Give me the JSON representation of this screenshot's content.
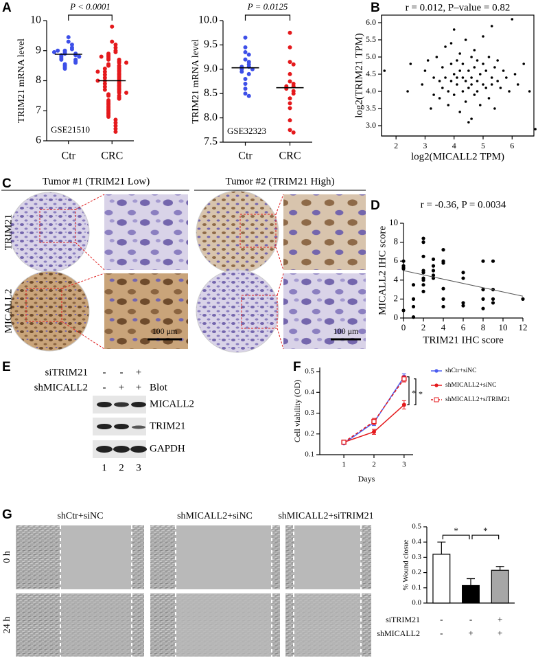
{
  "panels": [
    "A",
    "B",
    "C",
    "D",
    "E",
    "F",
    "G"
  ],
  "chart_data": [
    {
      "type": "dot",
      "pvalue": "P < 0.0001",
      "dataset": "GSE21510",
      "ylabel": "TRIM21 mRNA level",
      "categories": [
        "Ctr",
        "CRC"
      ],
      "ylim": [
        6,
        10
      ],
      "yticks": [
        6,
        7,
        8,
        9,
        10
      ],
      "groups": [
        {
          "color": "#3d4fe8",
          "mean": 8.88,
          "values": [
            9.3,
            9.45,
            9.2,
            9.1,
            9.05,
            9.0,
            8.95,
            8.9,
            8.9,
            8.85,
            8.85,
            8.8,
            8.8,
            8.75,
            8.7,
            8.7,
            8.65,
            8.6,
            8.55,
            8.5,
            8.45,
            8.4,
            9.0,
            8.95
          ]
        },
        {
          "color": "#e4191c",
          "mean": 8.0,
          "values": [
            9.8,
            9.3,
            9.2,
            9.1,
            9.0,
            8.95,
            8.9,
            8.85,
            8.8,
            8.75,
            8.7,
            8.7,
            8.65,
            8.6,
            8.55,
            8.5,
            8.5,
            8.45,
            8.4,
            8.4,
            8.35,
            8.3,
            8.3,
            8.25,
            8.2,
            8.2,
            8.15,
            8.1,
            8.1,
            8.05,
            8.0,
            8.0,
            7.95,
            7.9,
            7.9,
            7.85,
            7.8,
            7.8,
            7.75,
            7.7,
            7.7,
            7.65,
            7.6,
            7.55,
            7.5,
            7.5,
            7.45,
            7.4,
            7.35,
            7.3,
            7.25,
            7.2,
            7.15,
            7.1,
            7.05,
            7.0,
            6.95,
            6.9,
            6.85,
            6.8,
            6.7,
            6.6,
            6.5,
            6.4,
            6.3,
            8.6,
            8.0,
            7.6,
            8.3,
            8.8
          ]
        }
      ]
    },
    {
      "type": "dot",
      "pvalue": "P = 0.0125",
      "dataset": "GSE32323",
      "ylabel": "TRIM21 mRNA level",
      "categories": [
        "Ctr",
        "CRC"
      ],
      "ylim": [
        7.5,
        10
      ],
      "yticks": [
        7.5,
        {
          "value": 8,
          "label": "8.0"
        },
        8.5,
        {
          "value": 9,
          "label": "9.0"
        },
        9.5,
        {
          "value": 10,
          "label": "10.0"
        }
      ],
      "groups": [
        {
          "color": "#3d4fe8",
          "mean": 9.03,
          "values": [
            9.65,
            9.45,
            9.35,
            9.3,
            9.2,
            9.15,
            9.1,
            9.05,
            9.05,
            9.0,
            9.0,
            8.95,
            8.9,
            8.8,
            8.7,
            8.6,
            8.5,
            8.45
          ]
        },
        {
          "color": "#e4191c",
          "mean": 8.62,
          "values": [
            9.75,
            9.45,
            9.15,
            9.1,
            8.9,
            8.75,
            8.7,
            8.65,
            8.65,
            8.6,
            8.55,
            8.5,
            8.4,
            8.3,
            8.2,
            7.95,
            7.75,
            7.7
          ]
        }
      ]
    },
    {
      "type": "scatter",
      "title": "r = 0.012, P–value = 0.82",
      "xlabel": "log2(MICALL2 TPM)",
      "ylabel": "log2(TRIM21 TPM)",
      "box": true,
      "color": "#000000",
      "xlim": [
        1.5,
        6.75
      ],
      "xticks": [
        2,
        3,
        4,
        5,
        6
      ],
      "ylim": [
        2.7,
        6.22
      ],
      "yticks": [
        {
          "value": 3,
          "label": "3.0"
        },
        3.5,
        {
          "value": 4,
          "label": "4.0"
        },
        4.5,
        {
          "value": 5,
          "label": "5.0"
        },
        5.5,
        {
          "value": 6,
          "label": "6.0"
        }
      ],
      "x": [
        1.6,
        2.4,
        2.5,
        2.9,
        3.0,
        3.1,
        3.2,
        3.3,
        3.3,
        3.4,
        3.5,
        3.5,
        3.6,
        3.6,
        3.7,
        3.7,
        3.8,
        3.8,
        3.9,
        3.9,
        4.0,
        4.0,
        4.0,
        4.1,
        4.1,
        4.2,
        4.2,
        4.2,
        4.3,
        4.3,
        4.3,
        4.4,
        4.4,
        4.4,
        4.5,
        4.5,
        4.5,
        4.6,
        4.6,
        4.6,
        4.7,
        4.7,
        4.7,
        4.8,
        4.8,
        4.8,
        4.9,
        4.9,
        5.0,
        5.0,
        5.0,
        5.1,
        5.1,
        5.2,
        5.2,
        5.3,
        5.3,
        5.4,
        5.4,
        5.5,
        5.5,
        5.6,
        5.7,
        5.8,
        5.9,
        6.0,
        6.1,
        6.2,
        6.4,
        6.6,
        6.8,
        4.1,
        4.6,
        3.9,
        5.3
      ],
      "values": [
        4.6,
        4.0,
        4.8,
        4.2,
        4.6,
        4.9,
        3.5,
        4.4,
        3.9,
        5.0,
        4.3,
        3.8,
        4.7,
        4.1,
        5.3,
        4.4,
        4.0,
        3.6,
        4.8,
        4.3,
        5.8,
        4.5,
        3.9,
        4.2,
        4.9,
        4.6,
        3.4,
        5.1,
        4.0,
        4.4,
        4.8,
        3.7,
        4.3,
        5.5,
        4.1,
        4.6,
        3.1,
        5.0,
        4.2,
        4.4,
        4.7,
        3.9,
        5.2,
        4.3,
        4.0,
        4.9,
        4.5,
        3.6,
        4.8,
        4.2,
        5.6,
        4.1,
        4.6,
        3.8,
        5.0,
        4.4,
        4.2,
        4.7,
        3.5,
        4.3,
        4.9,
        4.1,
        4.6,
        4.4,
        4.0,
        6.1,
        4.5,
        4.2,
        4.8,
        4.0,
        2.9,
        4.4,
        3.2,
        5.4,
        5.9
      ]
    },
    {
      "type": "scatter",
      "title": "r = -0.36, P = 0.0034",
      "xlabel": "TRIM21 IHC score",
      "ylabel": "MICALL2 IHC score",
      "box": false,
      "color": "#000000",
      "xlim": [
        0,
        12
      ],
      "xticks": [
        0,
        2,
        4,
        6,
        8,
        10,
        12
      ],
      "ylim": [
        0,
        10
      ],
      "yticks": [
        0,
        2,
        4,
        6,
        8,
        10
      ],
      "x": [
        0,
        0,
        0,
        0,
        0,
        1,
        1,
        1,
        1,
        2,
        2,
        2,
        2,
        2,
        2,
        2,
        2,
        2,
        3,
        3,
        3,
        3,
        3,
        4,
        4,
        4,
        4,
        4,
        4,
        6,
        6,
        6,
        6,
        8,
        8,
        8,
        8,
        9,
        9,
        9,
        9,
        12
      ],
      "values": [
        0.8,
        5.2,
        5.5,
        6.0,
        5.3,
        1.2,
        0.1,
        3.5,
        2.0,
        8.4,
        8.0,
        6.5,
        5.0,
        4.8,
        4.2,
        4.0,
        3.5,
        2.8,
        6.2,
        5.5,
        5.0,
        4.5,
        4.2,
        7.2,
        6.0,
        5.8,
        3.1,
        2.0,
        1.2,
        4.8,
        4.2,
        1.6,
        1.3,
        6.0,
        3.0,
        2.0,
        1.0,
        6.0,
        3.0,
        2.0,
        1.6,
        2.0
      ],
      "trendline": {
        "x": [
          0,
          12
        ],
        "y": [
          5.0,
          2.3
        ]
      }
    },
    {
      "type": "line",
      "xlabel": "Days",
      "ylabel": "Cell viability (OD)",
      "legend": "right",
      "x": [
        1,
        2,
        3
      ],
      "xlim": [
        0.2,
        3.3
      ],
      "xticks": [
        1,
        2,
        3
      ],
      "ylim": [
        0.1,
        0.52
      ],
      "yticks": [
        0.1,
        0.2,
        0.3,
        0.4,
        0.5
      ],
      "series": [
        {
          "name": "shCtr+siNC",
          "color": "#4a5cf0",
          "marker": "circle",
          "dash": false,
          "values": [
            0.155,
            0.255,
            0.475
          ],
          "errors": [
            0.005,
            0.015,
            0.015
          ]
        },
        {
          "name": "shMICALL2+siNC",
          "color": "#e4191c",
          "marker": "circle",
          "dash": false,
          "values": [
            0.16,
            0.21,
            0.34
          ],
          "errors": [
            0.005,
            0.012,
            0.02
          ]
        },
        {
          "name": "shMICALL2+siTRIM21",
          "color": "#e4191c",
          "marker": "square",
          "dash": true,
          "values": [
            0.16,
            0.26,
            0.465
          ],
          "errors": [
            0.005,
            0.015,
            0.015
          ]
        }
      ],
      "significance": [
        "*",
        "*"
      ]
    },
    {
      "type": "bar",
      "ylabel": "% Wound closue",
      "ylim": [
        0,
        0.5
      ],
      "yticks": [
        {
          "value": 0,
          "label": "0.0"
        },
        0.1,
        0.2,
        0.3,
        0.4,
        0.5
      ],
      "values": [
        0.32,
        0.115,
        0.215
      ],
      "errors": [
        0.08,
        0.045,
        0.025
      ],
      "colors": [
        "#ffffff",
        "#000000",
        "#a6a6a6"
      ],
      "conditions": [
        {
          "name": "siTRIM21",
          "signs": [
            "-",
            "-",
            "+"
          ]
        },
        {
          "name": "shMICALL2",
          "signs": [
            "-",
            "+",
            "+"
          ]
        }
      ],
      "significance": [
        "*",
        "*"
      ]
    }
  ],
  "ihc": {
    "tumors": [
      "Tumor #1 (TRIM21 Low)",
      "Tumor #2 (TRIM21 High)"
    ],
    "stains": [
      "TRIM21",
      "MICALL2"
    ],
    "scale_bar": "100 μm"
  },
  "blot": {
    "conditions": [
      {
        "name": "siTRIM21",
        "signs": [
          "-",
          "-",
          "+"
        ]
      },
      {
        "name": "shMICALL2",
        "signs": [
          "-",
          "+",
          "+"
        ]
      }
    ],
    "header": "Blot",
    "bands": [
      "MICALL2",
      "TRIM21",
      "GAPDH"
    ],
    "lanes": [
      "1",
      "2",
      "3"
    ]
  },
  "wound": {
    "groups": [
      "shCtr+siNC",
      "shMICALL2+siNC",
      "shMICALL2+siTRIM21"
    ],
    "times": [
      "0 h",
      "24 h"
    ]
  }
}
